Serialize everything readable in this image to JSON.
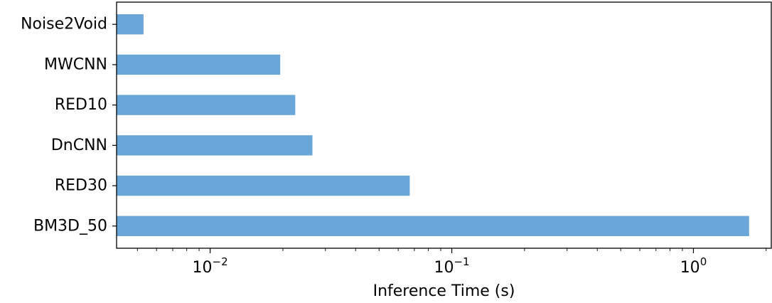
{
  "chart_data": {
    "type": "bar",
    "orientation": "horizontal",
    "categories": [
      "BM3D_50",
      "RED30",
      "DnCNN",
      "RED10",
      "MWCNN",
      "Noise2Void"
    ],
    "values": [
      1.7,
      0.067,
      0.0265,
      0.0225,
      0.0195,
      0.0053
    ],
    "title": "",
    "xlabel": "Inference Time (s)",
    "ylabel": "",
    "xscale": "log",
    "xlim": [
      0.0041,
      2.1
    ],
    "major_ticks": [
      {
        "value": 0.01,
        "base": "10",
        "exp": "−2"
      },
      {
        "value": 0.1,
        "base": "10",
        "exp": "−1"
      },
      {
        "value": 1,
        "base": "10",
        "exp": "0"
      }
    ],
    "grid": false,
    "legend": "none",
    "bar_color": "#6aa6d8"
  }
}
